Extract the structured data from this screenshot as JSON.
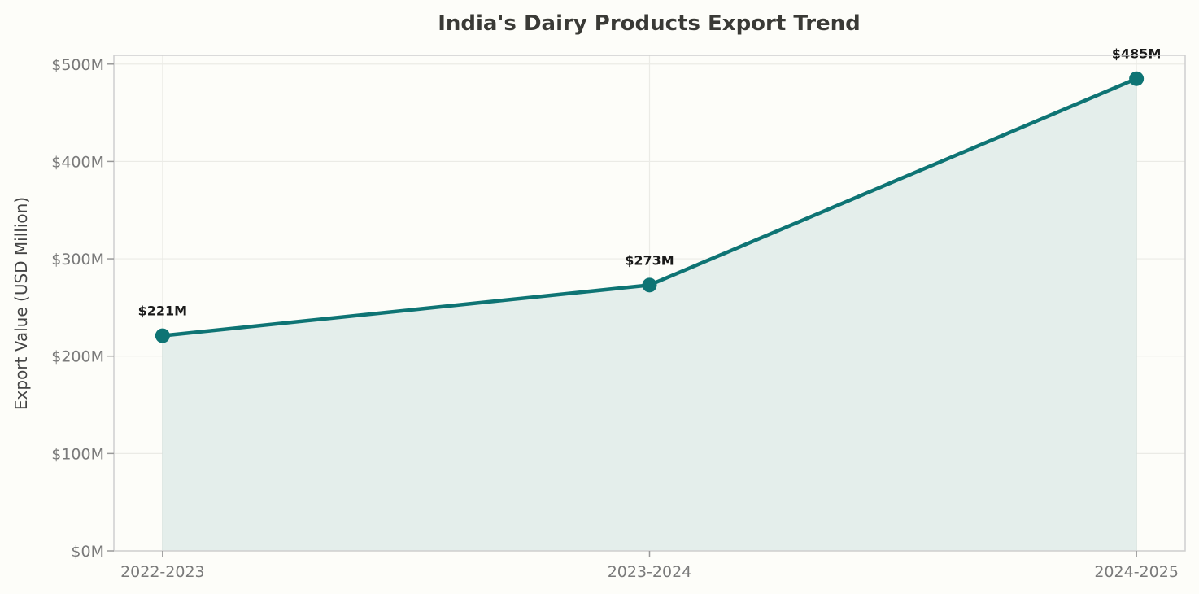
{
  "chart_data": {
    "type": "line",
    "title": "India's Dairy Products Export Trend",
    "xlabel": "",
    "ylabel": "Export Value (USD Million)",
    "categories": [
      "2022-2023",
      "2023-2024",
      "2024-2025"
    ],
    "series": [
      {
        "values": [
          221,
          273,
          485
        ]
      }
    ],
    "data_labels": [
      "$221M",
      "$273M",
      "$485M"
    ],
    "yticks": [
      0,
      100,
      200,
      300,
      400,
      500
    ],
    "ytick_labels": [
      "$0M",
      "$100M",
      "$200M",
      "$300M",
      "$400M",
      "$500M"
    ],
    "ylim": [
      0,
      509
    ],
    "grid": true,
    "area_fill": true,
    "colors": {
      "line": "#0e7474",
      "fill": "#e4eeeb",
      "background": "#fdfdf9"
    }
  }
}
